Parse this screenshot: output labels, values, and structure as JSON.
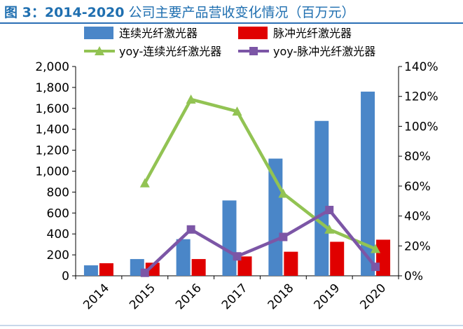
{
  "title": {
    "prefix": "图 3：",
    "years": "2014-2020",
    "rest": " 公司主要产品营收变化情况（百万元）"
  },
  "colors": {
    "cw_bar": "#4a86c8",
    "pulse_bar": "#e00000",
    "yoy_cw": "#92c353",
    "yoy_pulse": "#7c56a6",
    "title": "#1f6fb0"
  },
  "chart_data": {
    "type": "bar+line",
    "categories": [
      "2014",
      "2015",
      "2016",
      "2017",
      "2018",
      "2019",
      "2020"
    ],
    "series": [
      {
        "name": "连续光纤激光器",
        "kind": "bar",
        "axis": "left",
        "values": [
          100,
          160,
          350,
          720,
          1120,
          1480,
          1760
        ]
      },
      {
        "name": "脉冲光纤激光器",
        "kind": "bar",
        "axis": "left",
        "values": [
          120,
          125,
          160,
          185,
          230,
          325,
          345
        ]
      },
      {
        "name": "yoy-连续光纤激光器",
        "kind": "line",
        "marker": "triangle",
        "axis": "right",
        "values": [
          null,
          62,
          118,
          110,
          55,
          31,
          18
        ]
      },
      {
        "name": "yoy-脉冲光纤激光器",
        "kind": "line",
        "marker": "square",
        "axis": "right",
        "values": [
          null,
          2,
          31,
          13,
          26,
          44,
          6
        ]
      }
    ],
    "ylim_left": [
      0,
      2000
    ],
    "yticks_left": [
      "0",
      "200",
      "400",
      "600",
      "800",
      "1,000",
      "1,200",
      "1,400",
      "1,600",
      "1,800",
      "2,000"
    ],
    "ylim_right": [
      0,
      140
    ],
    "yticks_right": [
      "0%",
      "20%",
      "40%",
      "60%",
      "80%",
      "100%",
      "120%",
      "140%"
    ],
    "grid": false,
    "legend": "top"
  }
}
